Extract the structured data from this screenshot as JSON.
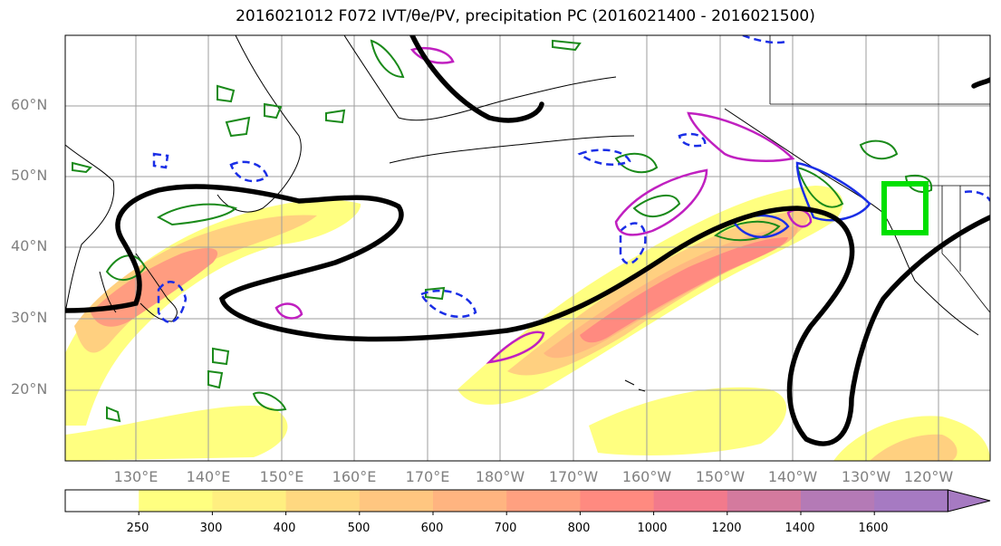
{
  "title": "2016021012 F072 IVT/θe/PV, precipitation PC (2016021400 - 2016021500)",
  "map": {
    "lat_labels": [
      {
        "text": "60°N",
        "lat": 60
      },
      {
        "text": "50°N",
        "lat": 50
      },
      {
        "text": "40°N",
        "lat": 40
      },
      {
        "text": "30°N",
        "lat": 30
      },
      {
        "text": "20°N",
        "lat": 20
      }
    ],
    "lon_labels": [
      {
        "text": "130°E",
        "lon": 130
      },
      {
        "text": "140°E",
        "lon": 140
      },
      {
        "text": "150°E",
        "lon": 150
      },
      {
        "text": "160°E",
        "lon": 160
      },
      {
        "text": "170°E",
        "lon": 170
      },
      {
        "text": "180°W",
        "lon": 180
      },
      {
        "text": "170°W",
        "lon": 190
      },
      {
        "text": "160°W",
        "lon": 200
      },
      {
        "text": "150°W",
        "lon": 210
      },
      {
        "text": "140°W",
        "lon": 220
      },
      {
        "text": "130°W",
        "lon": 230
      },
      {
        "text": "120°W",
        "lon": 240
      }
    ],
    "colors": {
      "ivt_fill": [
        "#ffff80",
        "#ffe680",
        "#ffd080",
        "#ffb880",
        "#ff9c80",
        "#ff8080"
      ],
      "theta_e_contour": "#000000",
      "pv_contour_green": "#1a8a1a",
      "pv_contour_blue": "#1a2ee6",
      "precip_contour": "#c020c0",
      "target_box": "#00e000"
    }
  },
  "colorbar": {
    "levels": [
      "250",
      "300",
      "400",
      "500",
      "600",
      "700",
      "800",
      "1000",
      "1200",
      "1400",
      "1600"
    ],
    "colors": [
      "#ffffff",
      "#ffff80",
      "#ffef80",
      "#ffd880",
      "#ffc680",
      "#ffb480",
      "#ffa080",
      "#ff8a80",
      "#f27a8c",
      "#d47a9e",
      "#b47ab6",
      "#a67ac2"
    ]
  }
}
